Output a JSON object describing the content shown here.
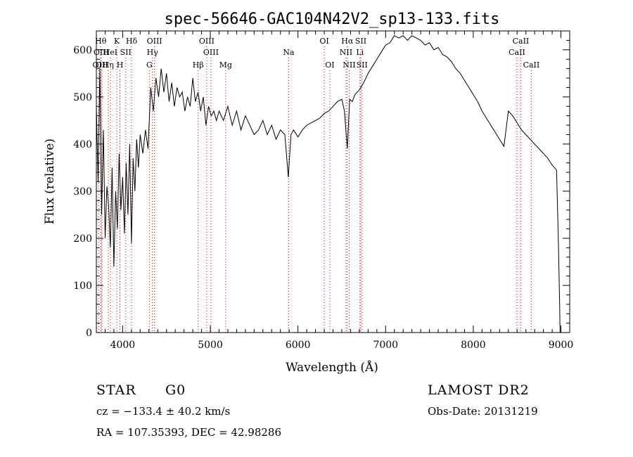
{
  "chart_data": {
    "type": "line",
    "title": "spec-56646-GAC104N42V2_sp13-133.fits",
    "xlabel": "Wavelength (Å)",
    "ylabel": "Flux (relative)",
    "xlim": [
      3700,
      9100
    ],
    "ylim": [
      0,
      640
    ],
    "xticks": [
      4000,
      5000,
      6000,
      7000,
      8000,
      9000
    ],
    "yticks": [
      0,
      100,
      200,
      300,
      400,
      500,
      600
    ],
    "grid": false,
    "series": [
      {
        "x": [
          3700,
          3720,
          3740,
          3760,
          3780,
          3800,
          3820,
          3840,
          3860,
          3880,
          3900,
          3920,
          3940,
          3960,
          3980,
          4000,
          4020,
          4040,
          4060,
          4080,
          4100,
          4120,
          4140,
          4160,
          4180,
          4200,
          4230,
          4260,
          4290,
          4320,
          4350,
          4380,
          4410,
          4440,
          4470,
          4500,
          4530,
          4560,
          4590,
          4620,
          4650,
          4680,
          4710,
          4740,
          4770,
          4800,
          4830,
          4860,
          4890,
          4920,
          4950,
          4980,
          5010,
          5040,
          5070,
          5100,
          5150,
          5200,
          5250,
          5300,
          5350,
          5400,
          5450,
          5500,
          5550,
          5600,
          5650,
          5700,
          5750,
          5800,
          5850,
          5890,
          5920,
          5950,
          6000,
          6050,
          6100,
          6150,
          6200,
          6250,
          6300,
          6350,
          6400,
          6450,
          6500,
          6530,
          6563,
          6590,
          6620,
          6650,
          6700,
          6750,
          6800,
          6850,
          6900,
          6950,
          7000,
          7050,
          7100,
          7150,
          7200,
          7250,
          7300,
          7350,
          7400,
          7450,
          7500,
          7550,
          7600,
          7650,
          7700,
          7750,
          7800,
          7850,
          7900,
          7950,
          8000,
          8050,
          8100,
          8150,
          8200,
          8250,
          8300,
          8350,
          8400,
          8450,
          8500,
          8550,
          8600,
          8650,
          8700,
          8750,
          8800,
          8850,
          8900,
          8950,
          8970,
          8985,
          8990
        ],
        "y": [
          480,
          320,
          560,
          250,
          430,
          200,
          310,
          270,
          180,
          350,
          140,
          300,
          220,
          380,
          260,
          330,
          210,
          360,
          250,
          400,
          190,
          370,
          300,
          410,
          350,
          420,
          380,
          430,
          390,
          520,
          470,
          540,
          500,
          560,
          510,
          550,
          490,
          530,
          480,
          520,
          500,
          510,
          470,
          500,
          480,
          540,
          490,
          510,
          470,
          500,
          440,
          480,
          460,
          470,
          450,
          470,
          450,
          480,
          440,
          470,
          430,
          460,
          440,
          420,
          430,
          450,
          420,
          440,
          410,
          430,
          420,
          330,
          420,
          430,
          415,
          430,
          440,
          445,
          450,
          455,
          465,
          470,
          480,
          490,
          495,
          470,
          390,
          495,
          490,
          505,
          515,
          530,
          550,
          565,
          580,
          595,
          610,
          615,
          630,
          625,
          630,
          620,
          630,
          625,
          620,
          610,
          615,
          600,
          605,
          590,
          585,
          575,
          560,
          550,
          535,
          520,
          505,
          490,
          470,
          455,
          440,
          425,
          410,
          395,
          470,
          460,
          445,
          430,
          420,
          410,
          400,
          390,
          380,
          370,
          355,
          345,
          200,
          60,
          0
        ]
      }
    ],
    "line_marks": [
      {
        "label": "OII",
        "wavelength": 3727,
        "row": 3
      },
      {
        "label": "Hθ",
        "wavelength": 3750,
        "row": 1
      },
      {
        "label": "OIII",
        "wavelength": 3755,
        "row": 2
      },
      {
        "label": "OII",
        "wavelength": 3763,
        "row": 3
      },
      {
        "label": "Hη",
        "wavelength": 3835,
        "row": 3
      },
      {
        "label": "HeI",
        "wavelength": 3860,
        "row": 2
      },
      {
        "label": "K",
        "wavelength": 3934,
        "row": 1
      },
      {
        "label": "H",
        "wavelength": 3969,
        "row": 3
      },
      {
        "label": "SII",
        "wavelength": 4035,
        "row": 2
      },
      {
        "label": "Hδ",
        "wavelength": 4102,
        "row": 1
      },
      {
        "label": "OIII",
        "wavelength": 4363,
        "row": 1
      },
      {
        "label": "Hγ",
        "wavelength": 4340,
        "row": 2
      },
      {
        "label": "G",
        "wavelength": 4305,
        "row": 3
      },
      {
        "label": "Hβ",
        "wavelength": 4861,
        "row": 3
      },
      {
        "label": "OIII",
        "wavelength": 4959,
        "row": 1
      },
      {
        "label": "OIII",
        "wavelength": 5007,
        "row": 2
      },
      {
        "label": "Mg",
        "wavelength": 5175,
        "row": 3
      },
      {
        "label": "Na",
        "wavelength": 5894,
        "row": 2
      },
      {
        "label": "OI",
        "wavelength": 6300,
        "row": 1
      },
      {
        "label": "OI",
        "wavelength": 6363,
        "row": 3
      },
      {
        "label": "Hα",
        "wavelength": 6563,
        "row": 1
      },
      {
        "label": "NII",
        "wavelength": 6548,
        "row": 2
      },
      {
        "label": "NII",
        "wavelength": 6584,
        "row": 3
      },
      {
        "label": "SII",
        "wavelength": 6717,
        "row": 1
      },
      {
        "label": "Li",
        "wavelength": 6707,
        "row": 2
      },
      {
        "label": "SII",
        "wavelength": 6731,
        "row": 3
      },
      {
        "label": "CaII",
        "wavelength": 8498,
        "row": 2
      },
      {
        "label": "CaII",
        "wavelength": 8542,
        "row": 1
      },
      {
        "label": "CaII",
        "wavelength": 8662,
        "row": 3
      }
    ]
  },
  "info": {
    "object_type": "STAR",
    "subclass": "G0",
    "survey": "LAMOST DR2",
    "cz": "cz = −133.4 ± 40.2 km/s",
    "obs_date": "Obs-Date: 20131219",
    "coords": "RA = 107.35393, DEC =  42.98286"
  }
}
